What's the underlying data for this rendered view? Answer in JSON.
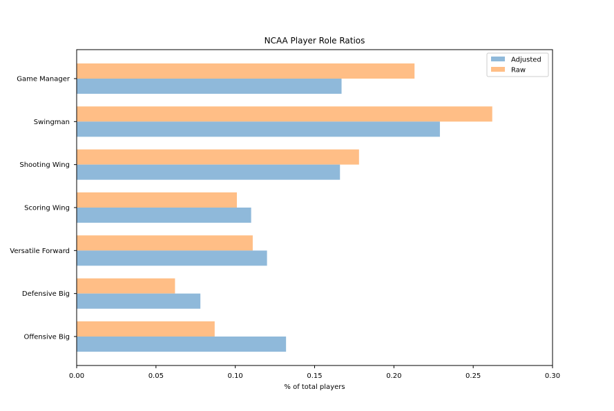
{
  "chart_data": {
    "type": "bar",
    "orientation": "horizontal",
    "title": "NCAA Player Role Ratios",
    "xlabel": "% of total players",
    "ylabel": "",
    "xlim": [
      0,
      0.3
    ],
    "xticks": [
      0,
      0.05,
      0.1,
      0.15,
      0.2,
      0.25,
      0.3
    ],
    "xtick_labels": [
      "0.00",
      "0.05",
      "0.10",
      "0.15",
      "0.20",
      "0.25",
      "0.30"
    ],
    "categories": [
      "Game Manager",
      "Swingman",
      "Shooting Wing",
      "Scoring Wing",
      "Versatile Forward",
      "Defensive Big",
      "Offensive Big"
    ],
    "series": [
      {
        "name": "Adjusted",
        "color": "#8fb9da",
        "values": [
          0.167,
          0.229,
          0.166,
          0.11,
          0.12,
          0.078,
          0.132
        ]
      },
      {
        "name": "Raw",
        "color": "#ffbe86",
        "values": [
          0.213,
          0.262,
          0.178,
          0.101,
          0.111,
          0.062,
          0.087
        ]
      }
    ],
    "legend": {
      "position": "top-right",
      "entries": [
        "Adjusted",
        "Raw"
      ]
    },
    "grid": false
  }
}
